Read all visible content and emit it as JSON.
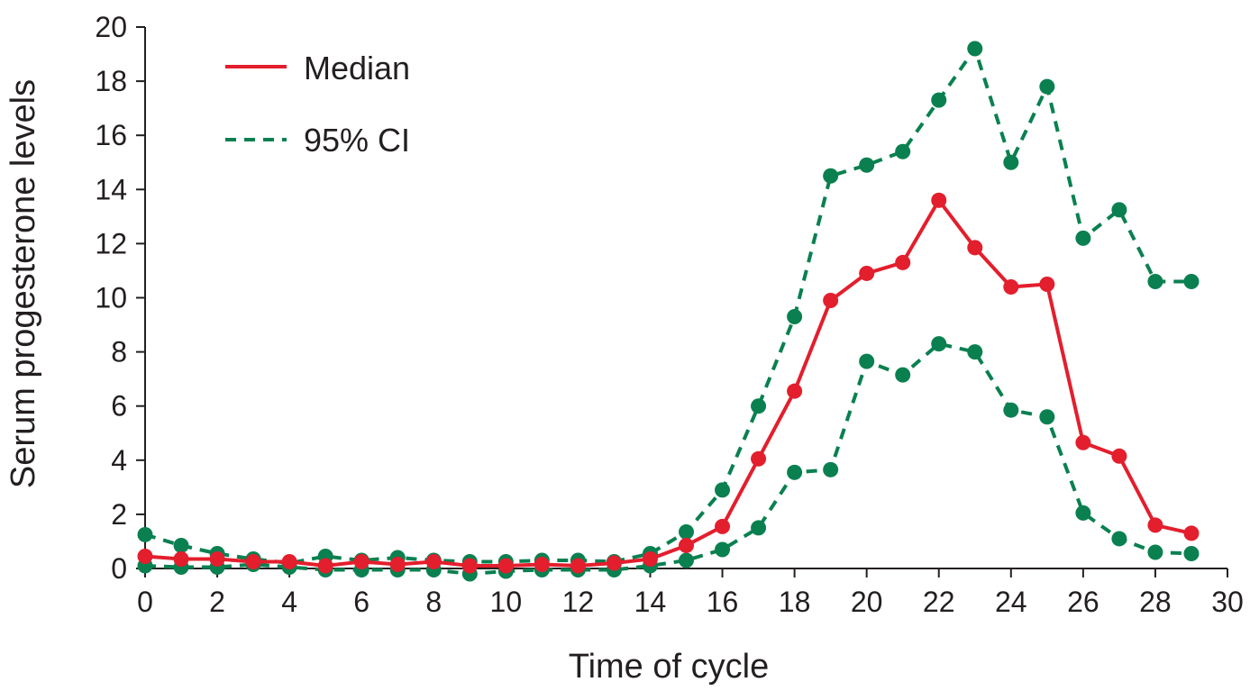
{
  "chart_data": {
    "type": "line",
    "xlabel": "Time of cycle",
    "ylabel": "Serum progesterone levels",
    "xlim": [
      0,
      30
    ],
    "ylim": [
      0,
      20
    ],
    "xticks": [
      "0",
      "2",
      "4",
      "6",
      "8",
      "10",
      "12",
      "14",
      "16",
      "18",
      "20",
      "22",
      "24",
      "26",
      "28",
      "30"
    ],
    "yticks": [
      "0",
      "2",
      "4",
      "6",
      "8",
      "10",
      "12",
      "14",
      "16",
      "18",
      "20"
    ],
    "grid": false,
    "legend_position": "top-left",
    "x": [
      0,
      1,
      2,
      3,
      4,
      5,
      6,
      7,
      8,
      9,
      10,
      11,
      12,
      13,
      14,
      15,
      16,
      17,
      18,
      19,
      20,
      21,
      22,
      23,
      24,
      25,
      26,
      27,
      28,
      29
    ],
    "series": [
      {
        "name": "Median",
        "style": "solid",
        "color": "#e31e2d",
        "values": [
          0.45,
          0.35,
          0.35,
          0.25,
          0.25,
          0.1,
          0.25,
          0.15,
          0.25,
          0.1,
          0.1,
          0.15,
          0.1,
          0.2,
          0.35,
          0.85,
          1.55,
          4.05,
          6.55,
          9.9,
          10.9,
          11.3,
          13.6,
          11.85,
          10.4,
          10.5,
          4.65,
          4.15,
          1.6,
          1.3
        ]
      },
      {
        "name": "95% CI",
        "style": "dashed",
        "color": "#0a8050",
        "values": [
          1.25,
          0.85,
          0.55,
          0.35,
          0.2,
          0.45,
          0.3,
          0.4,
          0.3,
          0.25,
          0.25,
          0.3,
          0.3,
          0.25,
          0.55,
          1.35,
          2.9,
          6.0,
          9.3,
          14.5,
          14.9,
          15.4,
          17.3,
          19.2,
          15.0,
          17.8,
          12.2,
          13.25,
          10.6,
          10.6
        ]
      },
      {
        "name": "",
        "style": "dashed",
        "color": "#0a8050",
        "values": [
          0.1,
          0.05,
          0.05,
          0.15,
          0.05,
          -0.05,
          -0.05,
          -0.05,
          -0.05,
          -0.2,
          -0.1,
          -0.05,
          -0.05,
          -0.05,
          0.1,
          0.3,
          0.7,
          1.5,
          3.55,
          3.65,
          7.65,
          7.15,
          8.3,
          8.0,
          5.85,
          5.6,
          2.05,
          1.1,
          0.6,
          0.55
        ]
      }
    ]
  }
}
